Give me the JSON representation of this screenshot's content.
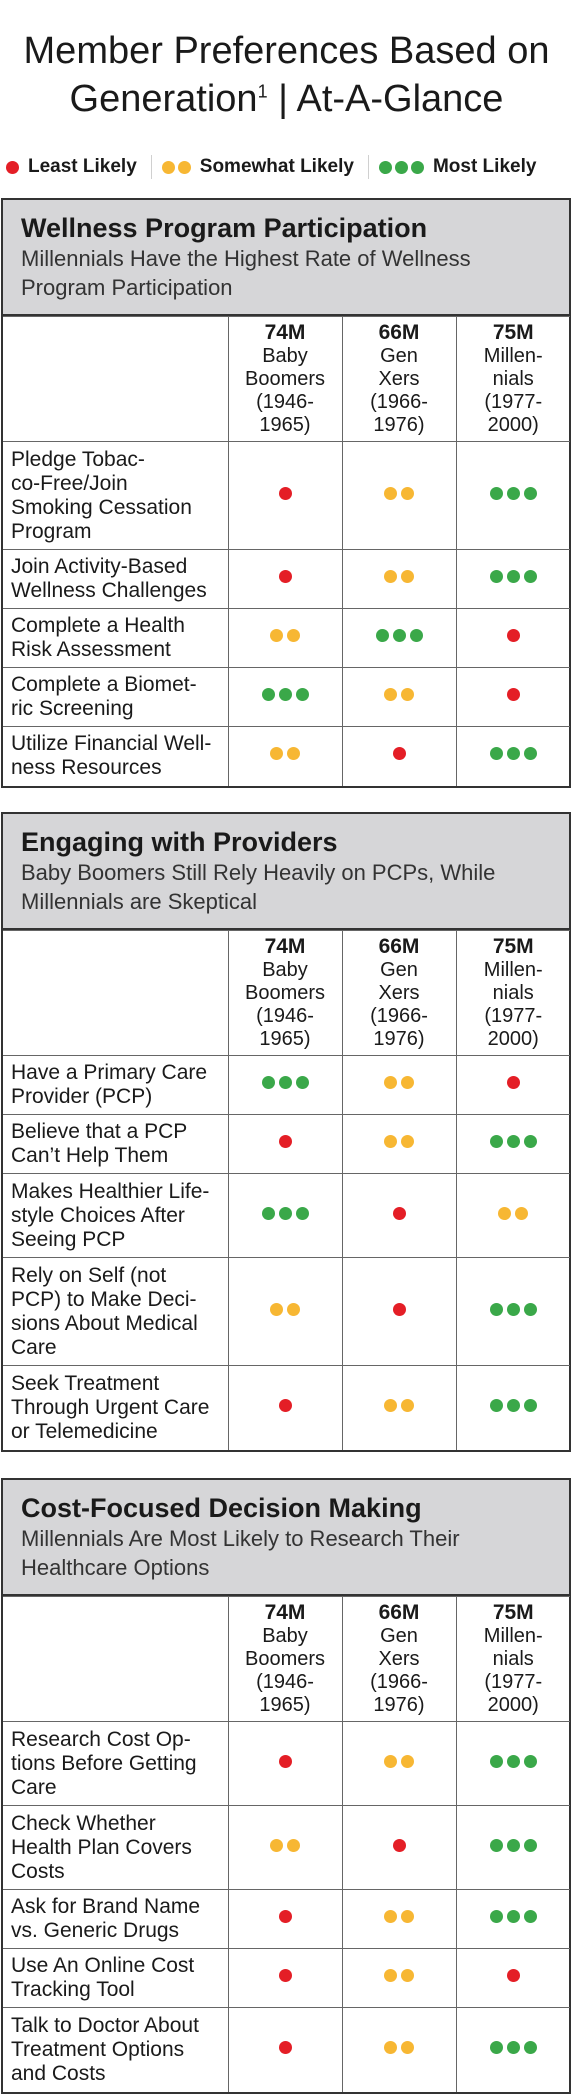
{
  "title": {
    "line1": "Member Preferences Based on",
    "line2_main": "Generation",
    "line2_sup": "1",
    "line2_rest": " | At-A-Glance"
  },
  "legend": [
    {
      "label": "Least Likely",
      "level": 1
    },
    {
      "label": "Somewhat Likely",
      "level": 2
    },
    {
      "label": "Most Likely",
      "level": 3
    }
  ],
  "colors": {
    "least": "#e41e26",
    "somewhat": "#f7b733",
    "most": "#3aa849"
  },
  "generations": [
    {
      "count": "74M",
      "name_lines": [
        "Baby",
        "Boomers"
      ],
      "years_lines": [
        "(1946-",
        "1965)"
      ]
    },
    {
      "count": "66M",
      "name_lines": [
        "Gen",
        "Xers"
      ],
      "years_lines": [
        "(1966-",
        "1976)"
      ]
    },
    {
      "count": "75M",
      "name_lines": [
        "Millen-",
        "nials"
      ],
      "years_lines": [
        "(1977-",
        "2000)"
      ]
    }
  ],
  "sections": [
    {
      "title": "Wellness Program Participation",
      "subtitle_lines": [
        "Millennials Have the Highest Rate of Wellness",
        "Program Participation"
      ],
      "rows": [
        {
          "label_lines": [
            "Pledge Tobac-",
            "co-Free/Join",
            "Smoking Cessation",
            "Program"
          ],
          "ratings": [
            1,
            2,
            3
          ]
        },
        {
          "label_lines": [
            "Join Activity-Based",
            "Wellness Challenges"
          ],
          "ratings": [
            1,
            2,
            3
          ]
        },
        {
          "label_lines": [
            "Complete a Health",
            "Risk Assessment"
          ],
          "ratings": [
            2,
            3,
            1
          ]
        },
        {
          "label_lines": [
            "Complete a Biomet-",
            "ric Screening"
          ],
          "ratings": [
            3,
            2,
            1
          ]
        },
        {
          "label_lines": [
            "Utilize Financial Well-",
            "ness Resources"
          ],
          "ratings": [
            2,
            1,
            3
          ]
        }
      ]
    },
    {
      "title": "Engaging with Providers",
      "subtitle_lines": [
        "Baby Boomers Still Rely Heavily on PCPs, While",
        "Millennials are Skeptical"
      ],
      "rows": [
        {
          "label_lines": [
            "Have a Primary Care",
            "Provider (PCP)"
          ],
          "ratings": [
            3,
            2,
            1
          ]
        },
        {
          "label_lines": [
            "Believe that a PCP",
            "Can’t Help Them"
          ],
          "ratings": [
            1,
            2,
            3
          ]
        },
        {
          "label_lines": [
            "Makes Healthier Life-",
            "style Choices After",
            "Seeing PCP"
          ],
          "ratings": [
            3,
            1,
            2
          ]
        },
        {
          "label_lines": [
            "Rely on Self (not",
            "PCP) to Make Deci-",
            "sions About Medical",
            "Care"
          ],
          "ratings": [
            2,
            1,
            3
          ]
        },
        {
          "label_lines": [
            "Seek Treatment",
            "Through Urgent Care",
            "or Telemedicine"
          ],
          "ratings": [
            1,
            2,
            3
          ]
        }
      ]
    },
    {
      "title": "Cost-Focused Decision Making",
      "subtitle_lines": [
        "Millennials Are Most Likely to Research Their",
        "Healthcare Options"
      ],
      "rows": [
        {
          "label_lines": [
            "Research Cost Op-",
            "tions Before Getting",
            "Care"
          ],
          "ratings": [
            1,
            2,
            3
          ]
        },
        {
          "label_lines": [
            "Check Whether",
            "Health Plan Covers",
            "Costs"
          ],
          "ratings": [
            2,
            1,
            3
          ]
        },
        {
          "label_lines": [
            "Ask for Brand Name",
            "vs. Generic Drugs"
          ],
          "ratings": [
            1,
            2,
            3
          ]
        },
        {
          "label_lines": [
            "Use An Online Cost",
            "Tracking Tool"
          ],
          "ratings": [
            1,
            2,
            1
          ]
        },
        {
          "label_lines": [
            "Talk to Doctor About",
            "Treatment Options",
            "and Costs"
          ],
          "ratings": [
            1,
            2,
            3
          ]
        }
      ]
    }
  ]
}
